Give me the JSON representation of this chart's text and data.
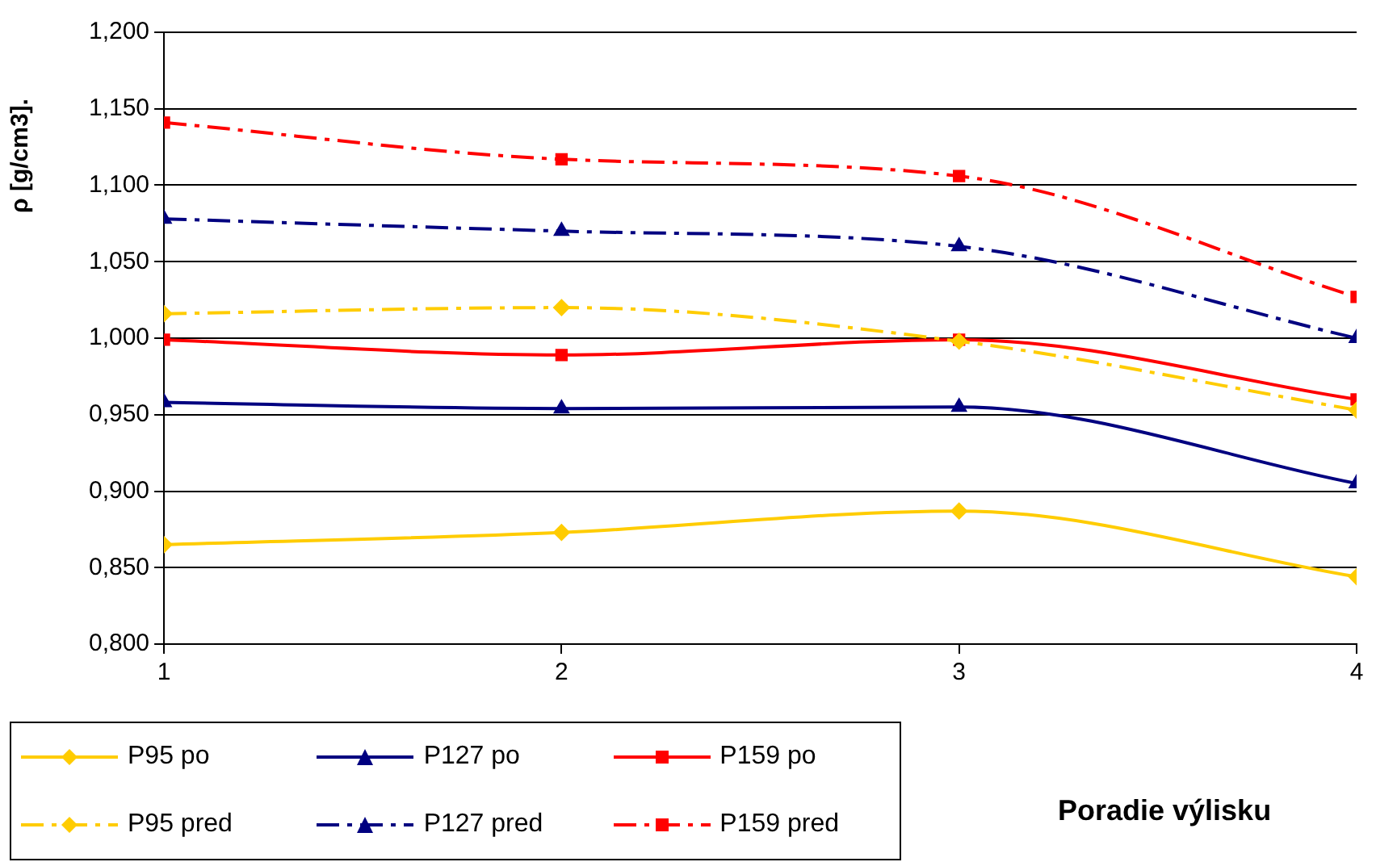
{
  "chart_data": {
    "type": "line",
    "xlabel": "Poradie výlisku",
    "ylabel": "ρ [g/cm3].",
    "x": [
      1,
      2,
      3,
      4
    ],
    "xlim": [
      1,
      4
    ],
    "xticks": [
      1,
      2,
      3,
      4
    ],
    "ylim": [
      0.8,
      1.2
    ],
    "yticks": [
      {
        "value": 0.8,
        "label": "0,800"
      },
      {
        "value": 0.85,
        "label": "0,850"
      },
      {
        "value": 0.9,
        "label": "0,900"
      },
      {
        "value": 0.95,
        "label": "0,950"
      },
      {
        "value": 1.0,
        "label": "1,000"
      },
      {
        "value": 1.05,
        "label": "1,050"
      },
      {
        "value": 1.1,
        "label": "1,100"
      },
      {
        "value": 1.15,
        "label": "1,150"
      },
      {
        "value": 1.2,
        "label": "1,200"
      }
    ],
    "grid": "y",
    "legend": "bottom left",
    "series": [
      {
        "name": "P95 po",
        "color": "#ffcc00",
        "marker": "diamond",
        "line_style": "solid",
        "values": [
          0.865,
          0.873,
          0.887,
          0.844
        ]
      },
      {
        "name": "P127 po",
        "color": "#000080",
        "marker": "triangle",
        "line_style": "solid",
        "values": [
          0.958,
          0.954,
          0.955,
          0.905
        ]
      },
      {
        "name": "P159 po",
        "color": "#ff0000",
        "marker": "square",
        "line_style": "solid",
        "values": [
          0.999,
          0.989,
          0.999,
          0.96
        ]
      },
      {
        "name": "P95 pred",
        "color": "#ffcc00",
        "marker": "diamond",
        "line_style": "dashed",
        "values": [
          1.016,
          1.02,
          0.998,
          0.953
        ]
      },
      {
        "name": "P127 pred",
        "color": "#000080",
        "marker": "triangle",
        "line_style": "dashed",
        "values": [
          1.078,
          1.07,
          1.06,
          1.0
        ]
      },
      {
        "name": "P159 pred",
        "color": "#ff0000",
        "marker": "square",
        "line_style": "dashed",
        "values": [
          1.141,
          1.117,
          1.106,
          1.027
        ]
      }
    ]
  }
}
